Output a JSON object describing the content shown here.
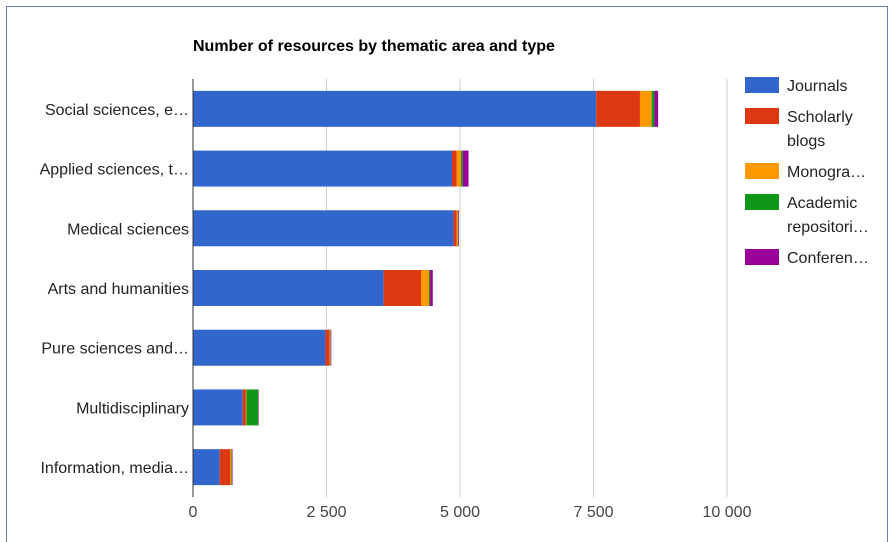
{
  "chart_data": {
    "type": "bar",
    "orientation": "horizontal",
    "stacked": true,
    "title": "Number of resources by thematic area and type",
    "xlabel": "",
    "ylabel": "",
    "xlim": [
      0,
      10000
    ],
    "x_ticks": [
      0,
      2500,
      5000,
      7500,
      10000
    ],
    "x_tick_labels": [
      "0",
      "2 500",
      "5 000",
      "7 500",
      "10 000"
    ],
    "grid": true,
    "legend_position": "right",
    "categories": [
      "Social sciences, e…",
      "Applied sciences, t…",
      "Medical sciences",
      "Arts and humanities",
      "Pure sciences and…",
      "Multidisciplinary",
      "Information, media…"
    ],
    "series": [
      {
        "name": "Journals",
        "color": "#3366cc",
        "values": [
          7550,
          4850,
          4880,
          3570,
          2480,
          930,
          500
        ]
      },
      {
        "name": "Scholarly blogs",
        "color": "#dc3912",
        "values": [
          820,
          90,
          60,
          700,
          80,
          60,
          200
        ]
      },
      {
        "name": "Monogra…",
        "color": "#ff9900",
        "values": [
          220,
          80,
          20,
          150,
          10,
          10,
          20
        ]
      },
      {
        "name": "Academic repositori…",
        "color": "#109618",
        "values": [
          50,
          30,
          10,
          20,
          10,
          220,
          10
        ]
      },
      {
        "name": "Conferen…",
        "color": "#990099",
        "values": [
          70,
          110,
          10,
          50,
          10,
          10,
          10
        ]
      }
    ],
    "legend_lines": [
      [
        "Journals"
      ],
      [
        "Scholarly",
        "blogs"
      ],
      [
        "Monogra…"
      ],
      [
        "Academic",
        "repositori…"
      ],
      [
        "Conferen…"
      ]
    ]
  }
}
